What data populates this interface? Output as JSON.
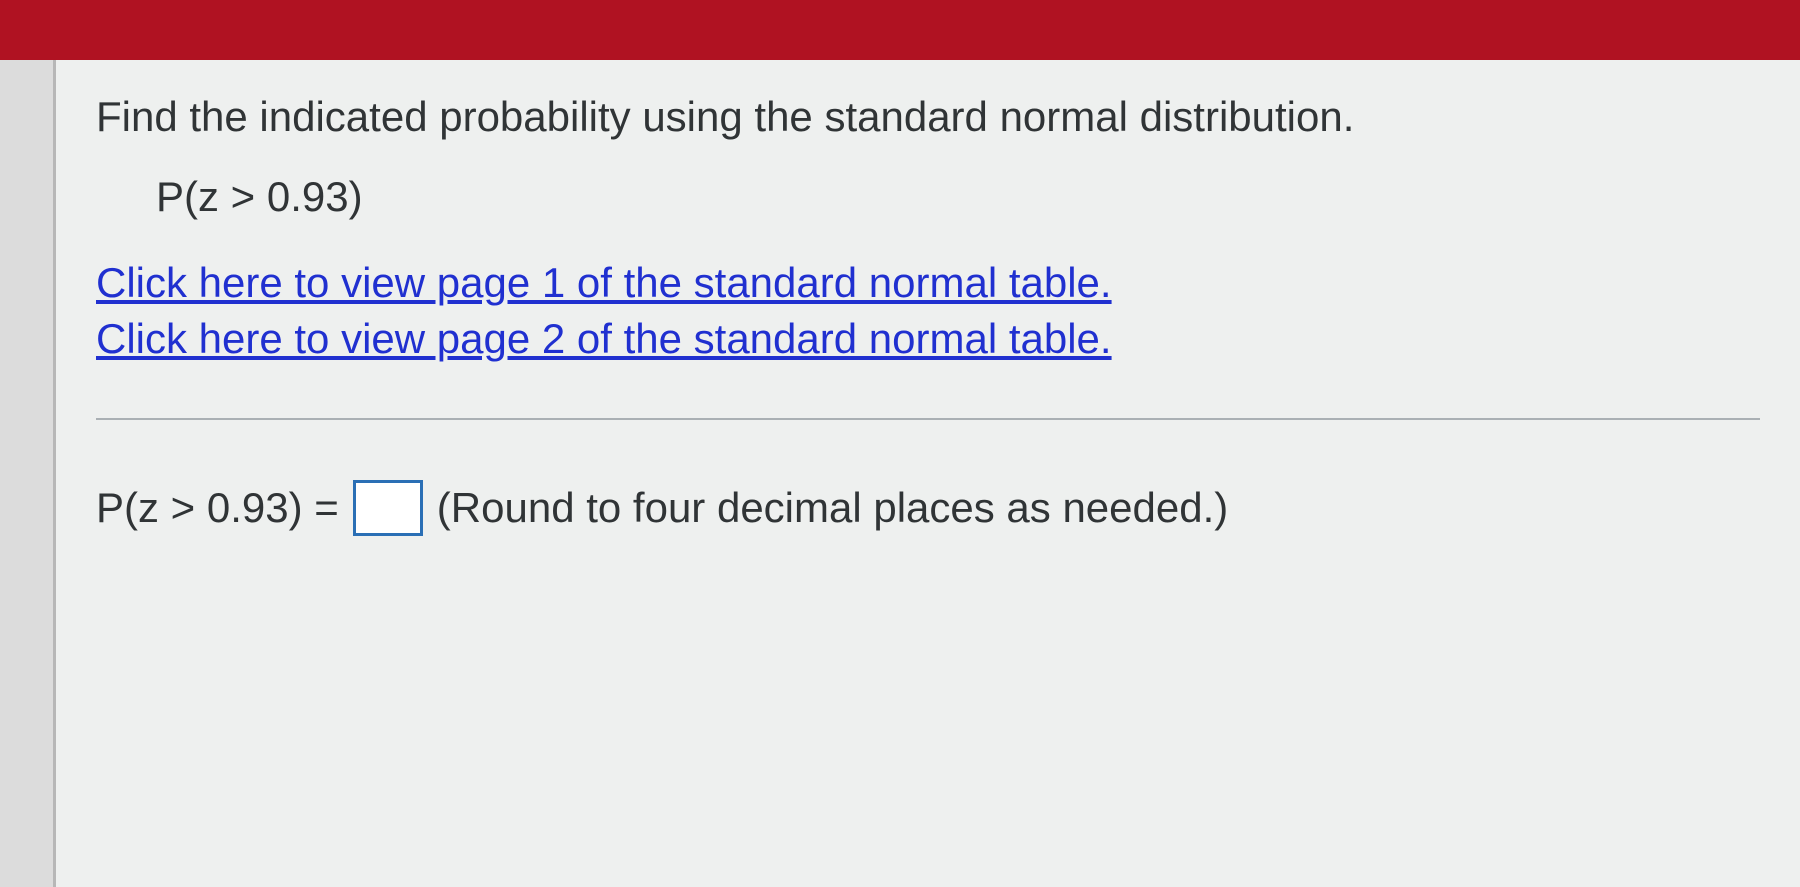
{
  "header": {
    "bar_color": "#b01222"
  },
  "question": {
    "prompt": "Find the indicated probability using the standard normal distribution.",
    "expression": "P(z > 0.93)"
  },
  "links": {
    "page1": "Click here to view page 1 of the standard normal table.",
    "page2": "Click here to view page 2 of the standard normal table."
  },
  "answer": {
    "label_prefix": "P(z > 0.93) =",
    "input_value": "",
    "hint": "(Round to four decimal places as needed.)"
  },
  "colors": {
    "link": "#2030d0",
    "text": "#303436",
    "input_border": "#2a6fb5",
    "background": "#eef0ef",
    "gutter": "#dcdcdc",
    "divider": "#aab0b4"
  }
}
